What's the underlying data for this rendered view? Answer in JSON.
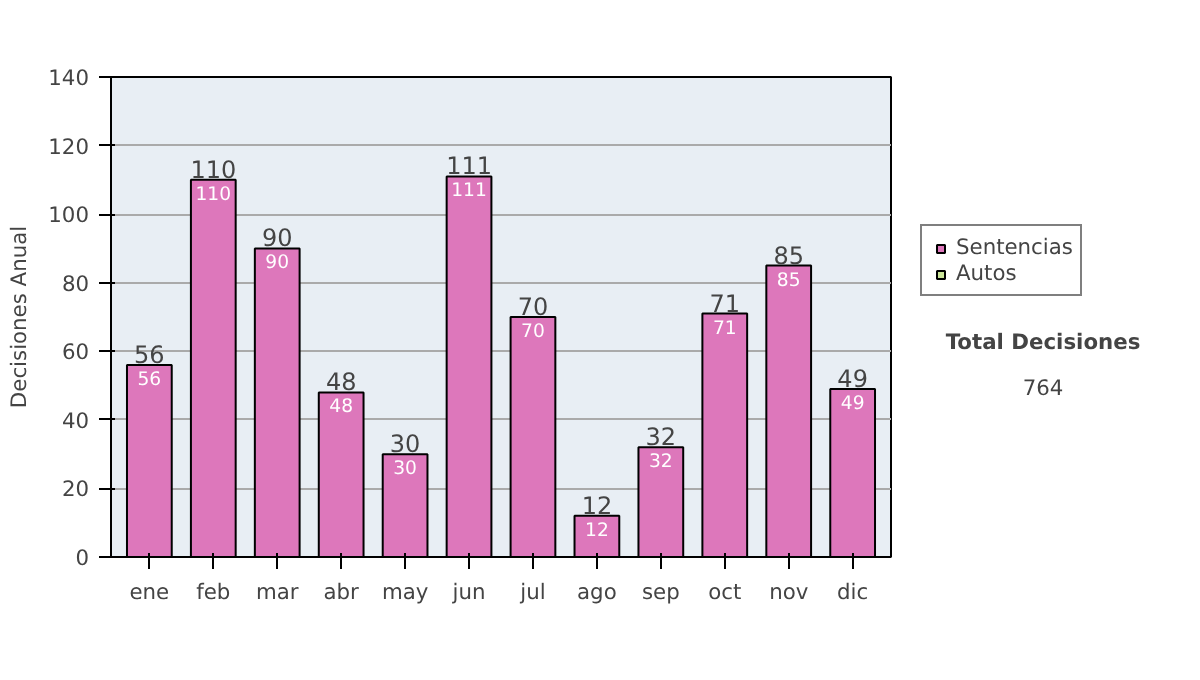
{
  "chart_data": {
    "type": "bar",
    "stacked": true,
    "ylabel": "Decisiones Anual",
    "categories": [
      "ene",
      "feb",
      "mar",
      "abr",
      "may",
      "jun",
      "jul",
      "ago",
      "sep",
      "oct",
      "nov",
      "dic"
    ],
    "series": [
      {
        "name": "Sentencias",
        "color": "#dd77bb",
        "values": [
          56,
          110,
          90,
          48,
          30,
          111,
          70,
          12,
          32,
          71,
          85,
          49
        ],
        "value_labels": [
          "56",
          "110",
          "90",
          "48",
          "30",
          "111",
          "70",
          "12",
          "32",
          "71",
          "85",
          "49"
        ]
      },
      {
        "name": "Autos",
        "color": "#cce699",
        "values": [
          null,
          null,
          null,
          null,
          null,
          null,
          null,
          null,
          null,
          null,
          null,
          null
        ]
      }
    ],
    "totals": [
      "56",
      "110",
      "90",
      "48",
      "30",
      "111",
      "70",
      "12",
      "32",
      "71",
      "85",
      "49"
    ],
    "ylim": [
      0,
      140
    ],
    "yticks": [
      0,
      20,
      40,
      60,
      80,
      100,
      120,
      140
    ],
    "grid": "y",
    "legend": "right",
    "annotations": [
      "Total Decisiones",
      "764"
    ]
  }
}
